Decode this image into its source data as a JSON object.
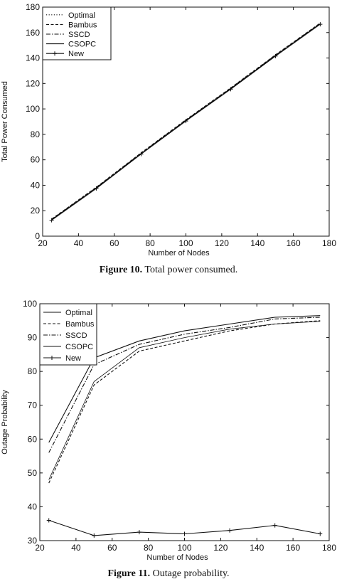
{
  "figures": [
    {
      "caption_label": "Figure 10.",
      "caption_text": "Total power consumed."
    },
    {
      "caption_label": "Figure 11.",
      "caption_text": "Outage probability."
    }
  ],
  "chart_data": [
    {
      "type": "line",
      "xlabel": "Number of Nodes",
      "ylabel": "Total Power Consumed",
      "xlim": [
        20,
        180
      ],
      "ylim": [
        0,
        180
      ],
      "xticks": [
        20,
        40,
        60,
        80,
        100,
        120,
        140,
        160,
        180
      ],
      "yticks": [
        0,
        20,
        40,
        60,
        80,
        100,
        120,
        140,
        160,
        180
      ],
      "legend_position": "top-left",
      "x": [
        25,
        50,
        75,
        100,
        125,
        150,
        175
      ],
      "series": [
        {
          "name": "Optimal",
          "style": "dotted",
          "values": [
            13,
            38,
            65,
            91,
            116,
            142,
            167
          ]
        },
        {
          "name": "Bambus",
          "style": "dashed",
          "values": [
            13.5,
            38.5,
            65.5,
            91.5,
            116.5,
            142.5,
            167.5
          ]
        },
        {
          "name": "SSCD",
          "style": "dashdot",
          "values": [
            13.2,
            38.2,
            65.2,
            91.2,
            116.2,
            142.2,
            167.2
          ]
        },
        {
          "name": "CSOPC",
          "style": "solid",
          "values": [
            12.8,
            37.8,
            64.8,
            90.8,
            115.8,
            141.8,
            166.8
          ]
        },
        {
          "name": "New",
          "style": "solid-plus",
          "values": [
            12.5,
            37.5,
            64.5,
            90.5,
            115.5,
            141.5,
            166.5
          ]
        }
      ]
    },
    {
      "type": "line",
      "xlabel": "Number of Nodes",
      "ylabel": "Outage Probability",
      "xlim": [
        20,
        180
      ],
      "ylim": [
        30,
        100
      ],
      "xticks": [
        20,
        40,
        60,
        80,
        100,
        120,
        140,
        160,
        180
      ],
      "yticks": [
        30,
        40,
        50,
        60,
        70,
        80,
        90,
        100
      ],
      "legend_position": "top-left",
      "x": [
        25,
        50,
        75,
        100,
        125,
        150,
        175
      ],
      "series": [
        {
          "name": "Optimal",
          "style": "solid",
          "values": [
            59,
            84,
            89,
            92,
            94,
            96,
            96.5
          ]
        },
        {
          "name": "Bambus",
          "style": "dashed",
          "values": [
            47,
            76,
            86,
            89,
            92,
            94,
            95
          ]
        },
        {
          "name": "SSCD",
          "style": "dashdot",
          "values": [
            56,
            82,
            88,
            91,
            93,
            95.5,
            96
          ]
        },
        {
          "name": "CSOPC",
          "style": "solid-thin",
          "values": [
            48,
            77,
            87,
            90,
            92.5,
            94,
            94.8
          ]
        },
        {
          "name": "New",
          "style": "solid-plus",
          "values": [
            36,
            31.5,
            32.5,
            32,
            33,
            34.5,
            32
          ]
        }
      ]
    }
  ]
}
